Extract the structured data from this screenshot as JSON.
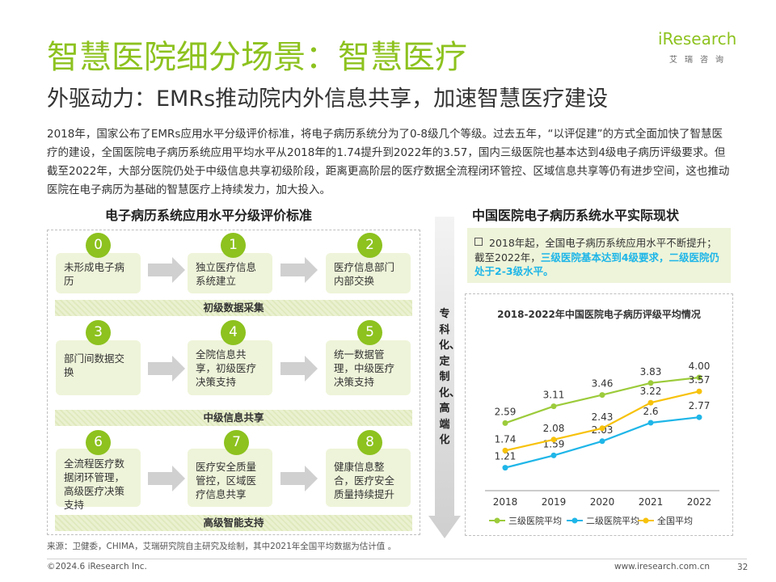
{
  "header": {
    "title": "智慧医院细分场景：智慧医疗",
    "subtitle": "外驱动力：EMRs推动院内外信息共享，加速智慧医疗建设",
    "logo_text": "iResearch",
    "logo_sub": "艾瑞咨询"
  },
  "intro": "2018年，国家公布了EMRs应用水平分级评价标准，将电子病历系统分为了0-8级几个等级。过去五年，“以评促建”的方式全面加快了智慧医疗的建设，全国医院电子病历系统应用平均水平从2018年的1.74提升到2022年的3.57，国内三级医院也基本达到4级电子病历评级要求。但截至2022年，大部分医院仍处于中级信息共享初级阶段，距离更高阶层的医疗数据全流程闭环管控、区域信息共享等仍有进步空间，这也推动医院在电子病历为基础的智慧医疗上持续发力，加大投入。",
  "left": {
    "title": "电子病历系统应用水平分级评价标准",
    "levels": [
      {
        "num": "0",
        "text": "未形成电子病历"
      },
      {
        "num": "1",
        "text": "独立医疗信息系统建立"
      },
      {
        "num": "2",
        "text": "医疗信息部门内部交换"
      },
      {
        "num": "3",
        "text": "部门间数据交换"
      },
      {
        "num": "4",
        "text": "全院信息共享，初级医疗决策支持"
      },
      {
        "num": "5",
        "text": "统一数据管理，中级医疗决策支持"
      },
      {
        "num": "6",
        "text": "全流程医疗数据闭环管理，高级医疗决策支持"
      },
      {
        "num": "7",
        "text": "医疗安全质量管控，区域医疗信息共享"
      },
      {
        "num": "8",
        "text": "健康信息整合，医疗安全质量持续提升"
      }
    ],
    "bands": [
      "初级数据采集",
      "中级信息共享",
      "高级智能支持"
    ]
  },
  "vertical_label": "专科化、定制化、高端化",
  "right": {
    "title": "中国医院电子病历系统水平实际现状",
    "note_prefix": "2018年起，全国电子病历系统应用水平不断提升；截至2022年，",
    "note_highlight": "三级医院基本达到4级要求，二级医院仍处于2-3级水平。"
  },
  "chart_data": {
    "type": "line",
    "title": "2018-2022年中国医院电子病历评级平均情况",
    "categories": [
      "2018",
      "2019",
      "2020",
      "2021",
      "2022"
    ],
    "ylim": [
      0.6,
      4.6
    ],
    "series": [
      {
        "name": "三级医院平均",
        "color": "#9ccb3b",
        "values": [
          2.59,
          3.11,
          3.46,
          3.83,
          4.0
        ],
        "labels": [
          "2.59",
          "3.11",
          "3.46",
          "3.83",
          "4.00"
        ]
      },
      {
        "name": "二级医院平均",
        "color": "#1fb6e8",
        "values": [
          1.21,
          1.59,
          2.03,
          2.6,
          2.77
        ],
        "labels": [
          "1.21",
          "1.59",
          "2.03",
          "2.6",
          "2.77"
        ]
      },
      {
        "name": "全国平均",
        "color": "#f7c20b",
        "values": [
          1.74,
          2.08,
          2.43,
          3.22,
          3.57
        ],
        "labels": [
          "1.74",
          "2.08",
          "2.43",
          "3.22",
          "3.57"
        ]
      }
    ],
    "legend_position": "bottom",
    "grid": false
  },
  "footer": {
    "source": "来源：卫健委，CHIMA，艾瑞研究院自主研究及绘制，其中2021年全国平均数据为估计值 。",
    "copyright": "©2024.6 iResearch Inc.",
    "url": "www.iresearch.com.cn",
    "page": "32"
  },
  "colors": {
    "brand_green": "#8dc21f",
    "light_green": "#eef4d9",
    "blue": "#1fb6e8",
    "yellow": "#f7c20b"
  }
}
